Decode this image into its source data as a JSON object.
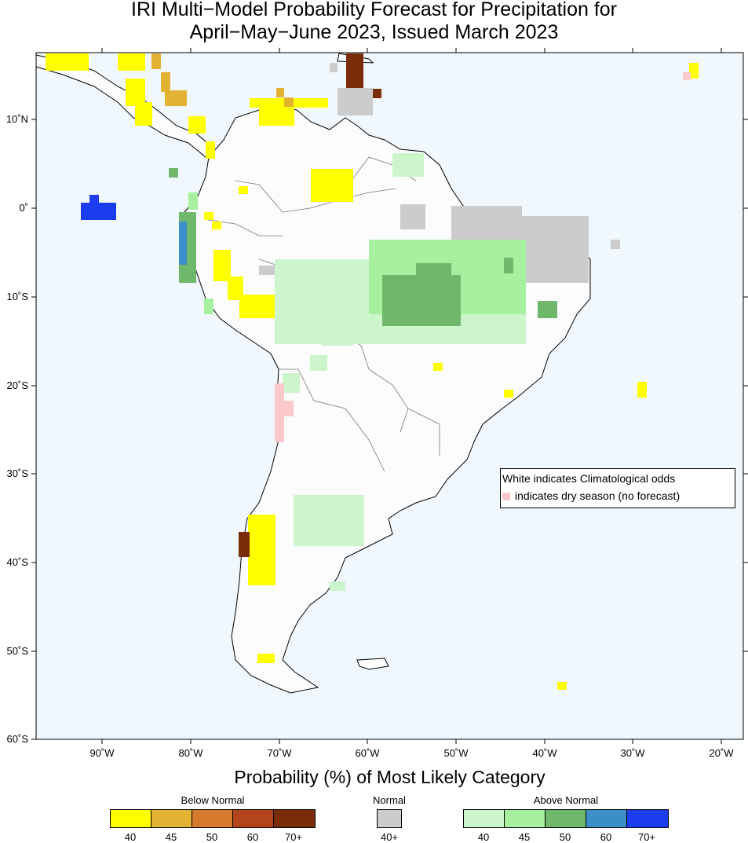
{
  "title_line1": "IRI Multi−Model Probability Forecast for Precipitation for",
  "title_line2": "April−May−June 2023, Issued March 2023",
  "lat_labels": [
    "10˚N",
    "0˚",
    "10˚S",
    "20˚S",
    "30˚S",
    "40˚S",
    "50˚S",
    "60˚S"
  ],
  "lon_labels": [
    "90˚W",
    "80˚W",
    "70˚W",
    "60˚W",
    "50˚W",
    "40˚W",
    "30˚W",
    "20˚W"
  ],
  "note": {
    "line1": "White indicates Climatological odds",
    "line2": "indicates dry season (no forecast)"
  },
  "legend": {
    "title": "Probability (%) of Most Likely Category",
    "below_normal": {
      "label": "Below Normal",
      "colors": [
        "#ffff00",
        "#e4b232",
        "#d67a2e",
        "#b3441b",
        "#7a2c08"
      ],
      "values": [
        "40",
        "45",
        "50",
        "60",
        "70+"
      ]
    },
    "normal": {
      "label": "Normal",
      "colors": [
        "#cccccc"
      ],
      "values": [
        "40+"
      ]
    },
    "above_normal": {
      "label": "Above Normal",
      "colors": [
        "#ccf5cc",
        "#a6f0a0",
        "#6fb86b",
        "#3b8ec8",
        "#1c3cf0"
      ],
      "values": [
        "40",
        "45",
        "50",
        "60",
        "70+"
      ]
    }
  },
  "colors": {
    "ocean": "#f1f8fd",
    "land": "#fcfcfd",
    "dry_season": "#fbc9c9"
  }
}
